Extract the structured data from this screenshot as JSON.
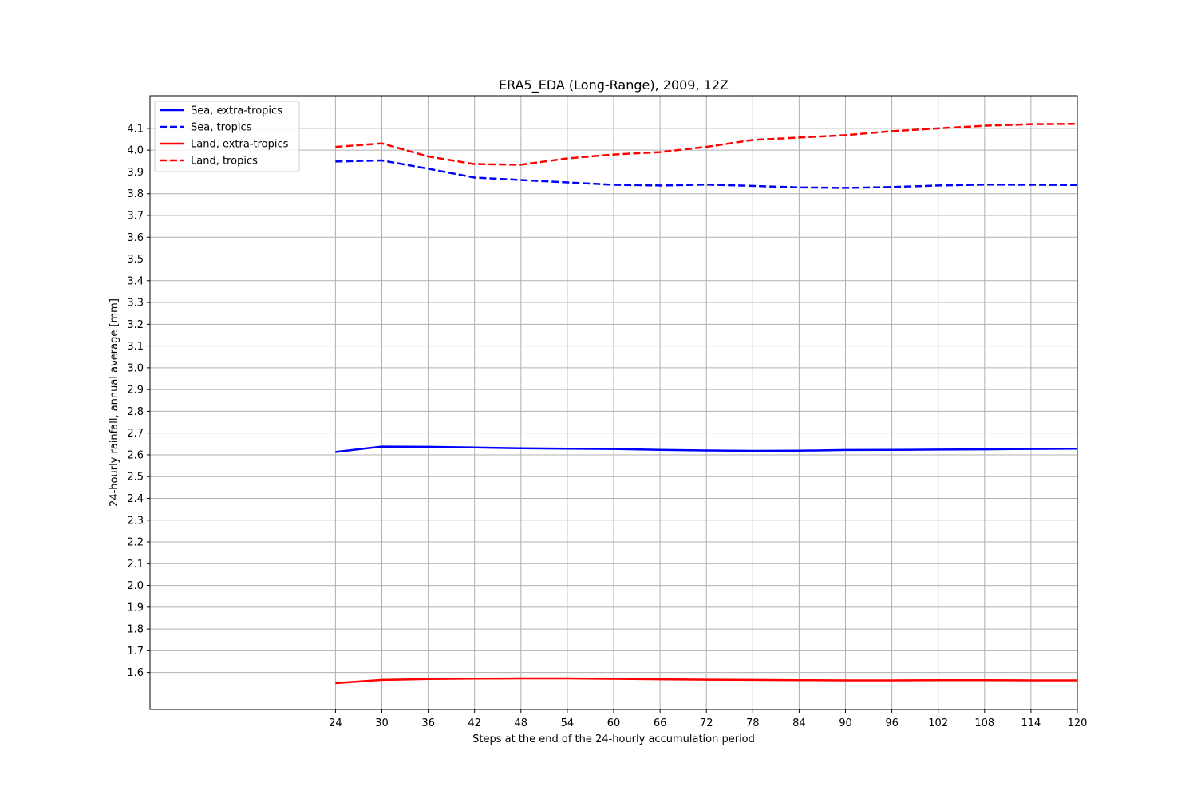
{
  "chart_data": {
    "type": "line",
    "title": "ERA5_EDA (Long-Range), 2009, 12Z",
    "xlabel": "Steps at the end of the 24-hourly accumulation period",
    "ylabel": "24-hourly rainfall, annual average [mm]",
    "xlim": [
      0,
      120
    ],
    "ylim": [
      1.43,
      4.25
    ],
    "x_ticks": [
      24,
      30,
      36,
      42,
      48,
      54,
      60,
      66,
      72,
      78,
      84,
      90,
      96,
      102,
      108,
      114,
      120
    ],
    "y_ticks": [
      1.6,
      1.7,
      1.8,
      1.9,
      2.0,
      2.1,
      2.2,
      2.3,
      2.4,
      2.5,
      2.6,
      2.7,
      2.8,
      2.9,
      3.0,
      3.1,
      3.2,
      3.3,
      3.4,
      3.5,
      3.6,
      3.7,
      3.8,
      3.9,
      4.0,
      4.1
    ],
    "grid": true,
    "legend_position": "top-left",
    "x": [
      24,
      30,
      36,
      42,
      48,
      54,
      60,
      66,
      72,
      78,
      84,
      90,
      96,
      102,
      108,
      114,
      120
    ],
    "series": [
      {
        "name": "Sea, extra-tropics",
        "color": "#0000ff",
        "style": "solid",
        "values": [
          2.613,
          2.638,
          2.637,
          2.634,
          2.63,
          2.628,
          2.627,
          2.623,
          2.62,
          2.618,
          2.619,
          2.622,
          2.623,
          2.624,
          2.625,
          2.627,
          2.628
        ]
      },
      {
        "name": "Sea, tropics",
        "color": "#0000ff",
        "style": "dashed",
        "values": [
          3.948,
          3.953,
          3.915,
          3.874,
          3.863,
          3.852,
          3.841,
          3.838,
          3.842,
          3.836,
          3.829,
          3.827,
          3.831,
          3.838,
          3.842,
          3.841,
          3.84
        ]
      },
      {
        "name": "Land, extra-tropics",
        "color": "#ff0000",
        "style": "solid",
        "values": [
          1.551,
          1.566,
          1.57,
          1.572,
          1.573,
          1.573,
          1.571,
          1.569,
          1.567,
          1.566,
          1.565,
          1.564,
          1.564,
          1.565,
          1.565,
          1.564,
          1.564
        ]
      },
      {
        "name": "Land, tropics",
        "color": "#ff0000",
        "style": "dashed",
        "values": [
          4.015,
          4.031,
          3.971,
          3.936,
          3.933,
          3.962,
          3.98,
          3.991,
          4.015,
          4.047,
          4.058,
          4.069,
          4.087,
          4.1,
          4.112,
          4.119,
          4.121
        ]
      }
    ]
  }
}
